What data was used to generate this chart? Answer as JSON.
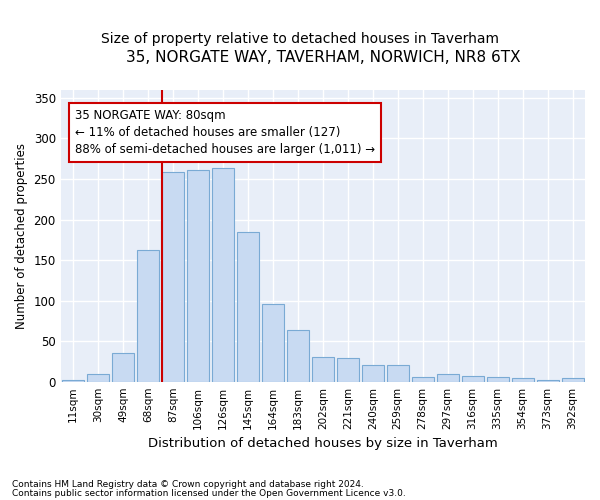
{
  "title": "35, NORGATE WAY, TAVERHAM, NORWICH, NR8 6TX",
  "subtitle": "Size of property relative to detached houses in Taverham",
  "xlabel": "Distribution of detached houses by size in Taverham",
  "ylabel": "Number of detached properties",
  "footnote1": "Contains HM Land Registry data © Crown copyright and database right 2024.",
  "footnote2": "Contains public sector information licensed under the Open Government Licence v3.0.",
  "categories": [
    "11sqm",
    "30sqm",
    "49sqm",
    "68sqm",
    "87sqm",
    "106sqm",
    "126sqm",
    "145sqm",
    "164sqm",
    "183sqm",
    "202sqm",
    "221sqm",
    "240sqm",
    "259sqm",
    "278sqm",
    "297sqm",
    "316sqm",
    "335sqm",
    "354sqm",
    "373sqm",
    "392sqm"
  ],
  "values": [
    2,
    9,
    35,
    163,
    259,
    261,
    263,
    184,
    96,
    64,
    30,
    29,
    20,
    20,
    6,
    10,
    7,
    6,
    4,
    2,
    4
  ],
  "bar_color": "#c8daf2",
  "bar_edge_color": "#7aaad4",
  "marker_label": "35 NORGATE WAY: 80sqm",
  "annotation_line1": "← 11% of detached houses are smaller (127)",
  "annotation_line2": "88% of semi-detached houses are larger (1,011) →",
  "vline_color": "#cc0000",
  "annotation_box_edge": "#cc0000",
  "ylim": [
    0,
    360
  ],
  "yticks": [
    0,
    50,
    100,
    150,
    200,
    250,
    300,
    350
  ],
  "background_color": "#ffffff",
  "axes_background": "#e8eef8",
  "grid_color": "#ffffff",
  "title_fontsize": 11,
  "subtitle_fontsize": 10,
  "title_fontweight": "normal"
}
